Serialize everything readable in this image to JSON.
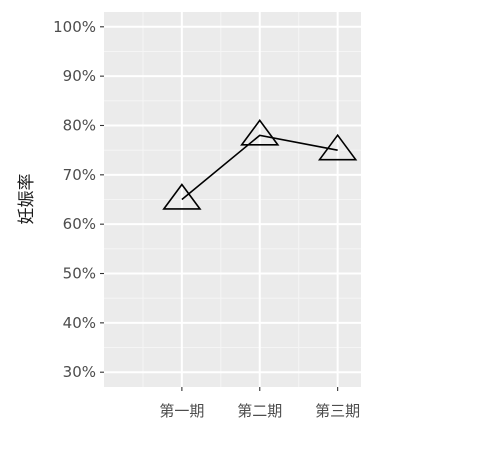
{
  "chart_data": {
    "type": "line",
    "title": "",
    "xlabel": "",
    "ylabel": "妊娠率",
    "categories": [
      "第一期",
      "第二期",
      "第三期"
    ],
    "series": [
      {
        "values": [
          65,
          78,
          75
        ],
        "marker": "open-triangle",
        "color": "#000000"
      }
    ],
    "ylim": [
      27,
      103
    ],
    "yticks": [
      30,
      40,
      50,
      60,
      70,
      80,
      90,
      100
    ],
    "ytick_labels": [
      "30%",
      "40%",
      "50%",
      "60%",
      "70%",
      "80%",
      "90%",
      "100%"
    ],
    "grid": true,
    "panel_color": "#ebebeb",
    "legend": "none"
  }
}
